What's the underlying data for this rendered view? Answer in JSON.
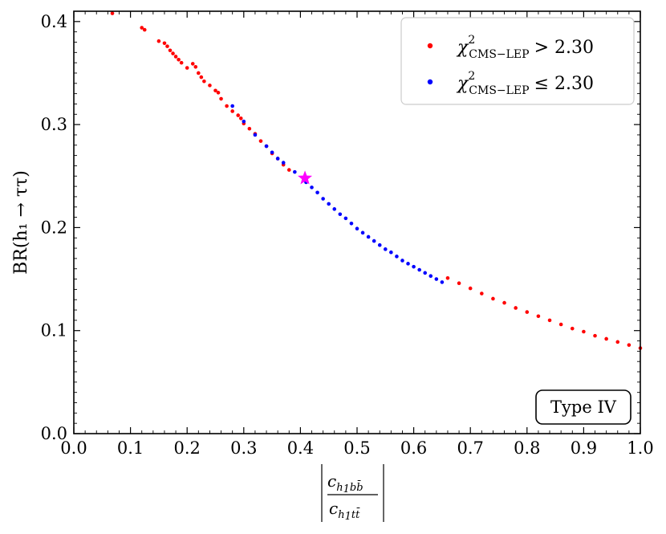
{
  "chart_data": {
    "type": "scatter",
    "title": "",
    "xlabel": "|c_{h1 b b̄} / c_{h1 t t̄}|",
    "xlabel_parts": {
      "num_main": "c",
      "num_sub1": "h",
      "num_sub2": "1",
      "num_sub3": "b",
      "num_sub4": "b̄",
      "den_main": "c",
      "den_sub1": "h",
      "den_sub2": "1",
      "den_sub3": "t",
      "den_sub4": "t̄"
    },
    "ylabel": "BR(h₁ → ττ)",
    "xlim": [
      0.0,
      1.0
    ],
    "ylim": [
      0.0,
      0.41
    ],
    "xticks": [
      "0.0",
      "0.1",
      "0.2",
      "0.3",
      "0.4",
      "0.5",
      "0.6",
      "0.7",
      "0.8",
      "0.9",
      "1.0"
    ],
    "yticks": [
      "0.0",
      "0.1",
      "0.2",
      "0.3",
      "0.4"
    ],
    "xtick_values": [
      0.0,
      0.1,
      0.2,
      0.3,
      0.4,
      0.5,
      0.6,
      0.7,
      0.8,
      0.9,
      1.0
    ],
    "ytick_values": [
      0.0,
      0.1,
      0.2,
      0.3,
      0.4
    ],
    "legend_position": "top-right",
    "series": [
      {
        "name": "χ²_CMS−LEP > 2.30",
        "legend_main": "χ",
        "legend_sup": "2",
        "legend_sub": "CMS−LEP",
        "legend_rel": "> 2.30",
        "color": "#ff0000",
        "x": [
          0.068,
          0.12,
          0.125,
          0.15,
          0.16,
          0.165,
          0.17,
          0.175,
          0.18,
          0.185,
          0.19,
          0.2,
          0.21,
          0.215,
          0.22,
          0.225,
          0.23,
          0.24,
          0.25,
          0.255,
          0.26,
          0.27,
          0.28,
          0.29,
          0.295,
          0.3,
          0.31,
          0.32,
          0.33,
          0.34,
          0.35,
          0.36,
          0.37,
          0.38,
          0.66,
          0.68,
          0.7,
          0.72,
          0.74,
          0.76,
          0.78,
          0.8,
          0.82,
          0.84,
          0.86,
          0.88,
          0.9,
          0.92,
          0.94,
          0.96,
          0.98,
          1.0
        ],
        "y": [
          0.408,
          0.394,
          0.392,
          0.381,
          0.379,
          0.376,
          0.372,
          0.369,
          0.366,
          0.363,
          0.36,
          0.355,
          0.359,
          0.356,
          0.35,
          0.346,
          0.342,
          0.338,
          0.333,
          0.331,
          0.325,
          0.318,
          0.313,
          0.309,
          0.306,
          0.301,
          0.296,
          0.291,
          0.284,
          0.279,
          0.272,
          0.267,
          0.261,
          0.256,
          0.151,
          0.146,
          0.141,
          0.136,
          0.131,
          0.127,
          0.122,
          0.118,
          0.114,
          0.11,
          0.106,
          0.102,
          0.099,
          0.095,
          0.092,
          0.089,
          0.086,
          0.083
        ]
      },
      {
        "name": "χ²_CMS−LEP ≤ 2.30",
        "legend_main": "χ",
        "legend_sup": "2",
        "legend_sub": "CMS−LEP",
        "legend_rel": "≤ 2.30",
        "color": "#0000ff",
        "x": [
          0.28,
          0.3,
          0.32,
          0.34,
          0.35,
          0.36,
          0.37,
          0.39,
          0.41,
          0.42,
          0.43,
          0.44,
          0.45,
          0.46,
          0.47,
          0.48,
          0.49,
          0.5,
          0.51,
          0.52,
          0.53,
          0.54,
          0.55,
          0.56,
          0.57,
          0.58,
          0.59,
          0.6,
          0.61,
          0.62,
          0.63,
          0.64,
          0.65
        ],
        "y": [
          0.318,
          0.303,
          0.29,
          0.279,
          0.273,
          0.267,
          0.263,
          0.254,
          0.244,
          0.239,
          0.234,
          0.228,
          0.223,
          0.218,
          0.213,
          0.209,
          0.204,
          0.199,
          0.195,
          0.191,
          0.187,
          0.183,
          0.179,
          0.176,
          0.172,
          0.168,
          0.165,
          0.162,
          0.159,
          0.156,
          0.153,
          0.15,
          0.147
        ]
      }
    ],
    "highlight_point": {
      "x": 0.408,
      "y": 0.248,
      "marker": "star",
      "color": "#ff00ff"
    },
    "annotation": {
      "text": "Type IV",
      "position": "bottom-right"
    },
    "grid": false
  }
}
